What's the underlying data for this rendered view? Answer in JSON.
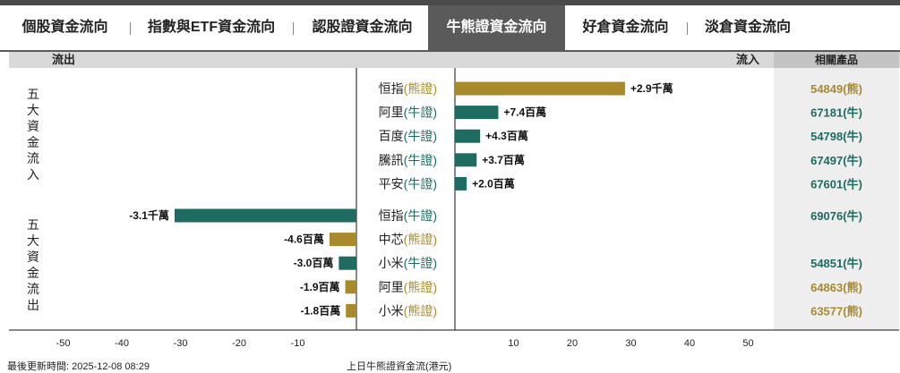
{
  "tabs": [
    {
      "label": "個股資金流向",
      "active": false
    },
    {
      "label": "指數與ETF資金流向",
      "active": false
    },
    {
      "label": "認股證資金流向",
      "active": false
    },
    {
      "label": "牛熊證資金流向",
      "active": true
    },
    {
      "label": "好倉資金流向",
      "active": false
    },
    {
      "label": "淡倉資金流向",
      "active": false
    }
  ],
  "header": {
    "outflow_label": "流出",
    "inflow_label": "流入",
    "product_label": "相關產品"
  },
  "groups": {
    "inflow_label": [
      "五",
      "大",
      "資",
      "金",
      "流",
      "入"
    ],
    "outflow_label": [
      "五",
      "大",
      "資",
      "金",
      "流",
      "出"
    ]
  },
  "colors": {
    "bull": "#1e6b62",
    "bear": "#a88a2c"
  },
  "footer": {
    "updated": "最後更新時間: 2025-12-08 08:29",
    "caption": "上日牛熊證資金流(港元)"
  },
  "chart_data": {
    "type": "bar",
    "orientation": "horizontal",
    "xlim": [
      -50,
      50
    ],
    "xticks": [
      -50,
      -40,
      -30,
      -20,
      -10,
      10,
      20,
      30,
      40,
      50
    ],
    "unit": "百萬港元",
    "rows": [
      {
        "name": "恒指",
        "kind": "熊證",
        "value": 29,
        "label": "+2.9千萬",
        "product": "54849(熊)"
      },
      {
        "name": "阿里",
        "kind": "牛證",
        "value": 7.4,
        "label": "+7.4百萬",
        "product": "67181(牛)"
      },
      {
        "name": "百度",
        "kind": "牛證",
        "value": 4.3,
        "label": "+4.3百萬",
        "product": "54798(牛)"
      },
      {
        "name": "騰訊",
        "kind": "牛證",
        "value": 3.7,
        "label": "+3.7百萬",
        "product": "67497(牛)"
      },
      {
        "name": "平安",
        "kind": "牛證",
        "value": 2.0,
        "label": "+2.0百萬",
        "product": "67601(牛)"
      },
      {
        "name": "恒指",
        "kind": "牛證",
        "value": -31,
        "label": "-3.1千萬",
        "product": "69076(牛)"
      },
      {
        "name": "中芯",
        "kind": "熊證",
        "value": -4.6,
        "label": "-4.6百萬",
        "product": ""
      },
      {
        "name": "小米",
        "kind": "牛證",
        "value": -3.0,
        "label": "-3.0百萬",
        "product": "54851(牛)"
      },
      {
        "name": "阿里",
        "kind": "熊證",
        "value": -1.9,
        "label": "-1.9百萬",
        "product": "64863(熊)"
      },
      {
        "name": "小米",
        "kind": "熊證",
        "value": -1.8,
        "label": "-1.8百萬",
        "product": "63577(熊)"
      }
    ]
  }
}
